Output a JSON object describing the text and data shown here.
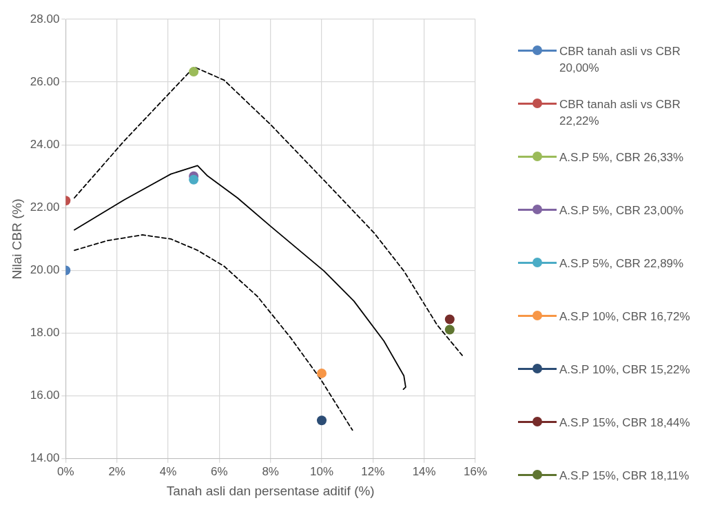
{
  "chart_data": {
    "type": "scatter",
    "xlabel": "Tanah asli dan persentase aditif (%)",
    "ylabel": "Nilai CBR (%)",
    "xlim": [
      0,
      16
    ],
    "xticks": [
      {
        "value": 0,
        "label": "0%"
      },
      {
        "value": 2,
        "label": "2%"
      },
      {
        "value": 4,
        "label": "4%"
      },
      {
        "value": 6,
        "label": "6%"
      },
      {
        "value": 8,
        "label": "8%"
      },
      {
        "value": 10,
        "label": "10%"
      },
      {
        "value": 12,
        "label": "12%"
      },
      {
        "value": 14,
        "label": "14%"
      },
      {
        "value": 16,
        "label": "16%"
      }
    ],
    "ylim": [
      14,
      28
    ],
    "yticks": [
      {
        "value": 14,
        "label": "14.00"
      },
      {
        "value": 16,
        "label": "16.00"
      },
      {
        "value": 18,
        "label": "18.00"
      },
      {
        "value": 20,
        "label": "20.00"
      },
      {
        "value": 22,
        "label": "22.00"
      },
      {
        "value": 24,
        "label": "24.00"
      },
      {
        "value": 26,
        "label": "26.00"
      },
      {
        "value": 28,
        "label": "28.00"
      }
    ],
    "grid": true,
    "legend": "right",
    "marker": "circle",
    "series": [
      {
        "name": "CBR tanah asli vs CBR 20,00%",
        "color": "#4f81bd",
        "x": [
          0
        ],
        "values": [
          20
        ]
      },
      {
        "name": "CBR tanah asli vs CBR 22,22%",
        "color": "#c0504d",
        "x": [
          0
        ],
        "values": [
          22.22
        ]
      },
      {
        "name": "A.S.P 5%, CBR 26,33%",
        "color": "#9bbb59",
        "x": [
          5
        ],
        "values": [
          26.33
        ]
      },
      {
        "name": "A.S.P 5%, CBR 23,00%",
        "color": "#8064a2",
        "x": [
          5
        ],
        "values": [
          23
        ]
      },
      {
        "name": "A.S.P 5%, CBR 22,89%",
        "color": "#4bacc6",
        "x": [
          5
        ],
        "values": [
          22.89
        ]
      },
      {
        "name": "A.S.P 10%, CBR 16,72%",
        "color": "#f79646",
        "x": [
          10
        ],
        "values": [
          16.72
        ]
      },
      {
        "name": "A.S.P 10%, CBR 15,22%",
        "color": "#2c4d75",
        "x": [
          10
        ],
        "values": [
          15.22
        ]
      },
      {
        "name": "A.S.P 15%, CBR 18,44%",
        "color": "#772c2a",
        "x": [
          15
        ],
        "values": [
          18.44
        ]
      },
      {
        "name": "A.S.P 15%, CBR 18,11%",
        "color": "#5f7530",
        "x": [
          15
        ],
        "values": [
          18.11
        ]
      },
      {
        "type": "line",
        "color": "#000000",
        "line_style": "dashed",
        "marker": "none",
        "x": [
          0.34,
          2.29,
          5.02,
          6.19,
          8.01,
          10.09,
          12.04,
          13.21,
          14.51,
          15.49
        ],
        "values": [
          22.31,
          24.13,
          26.48,
          26.06,
          24.64,
          22.87,
          21.2,
          19.98,
          18.26,
          17.29
        ]
      },
      {
        "type": "line",
        "color": "#000000",
        "line_style": "solid",
        "marker": "none",
        "x": [
          0.34,
          2.29,
          4.11,
          5.15,
          5.54,
          6.71,
          8.01,
          10.09,
          11.26,
          12.43,
          13.21,
          13.28,
          13.19
        ],
        "values": [
          21.29,
          22.25,
          23.07,
          23.34,
          23.01,
          22.31,
          21.4,
          19.98,
          19.02,
          17.75,
          16.64,
          16.28,
          16.21
        ]
      },
      {
        "type": "line",
        "color": "#000000",
        "line_style": "dashed",
        "marker": "none",
        "x": [
          0.34,
          1.64,
          3.0,
          4.11,
          5.15,
          6.19,
          7.49,
          8.79,
          9.96,
          11.2
        ],
        "values": [
          20.64,
          20.95,
          21.13,
          21.0,
          20.64,
          20.13,
          19.17,
          17.85,
          16.53,
          14.91
        ]
      }
    ]
  }
}
